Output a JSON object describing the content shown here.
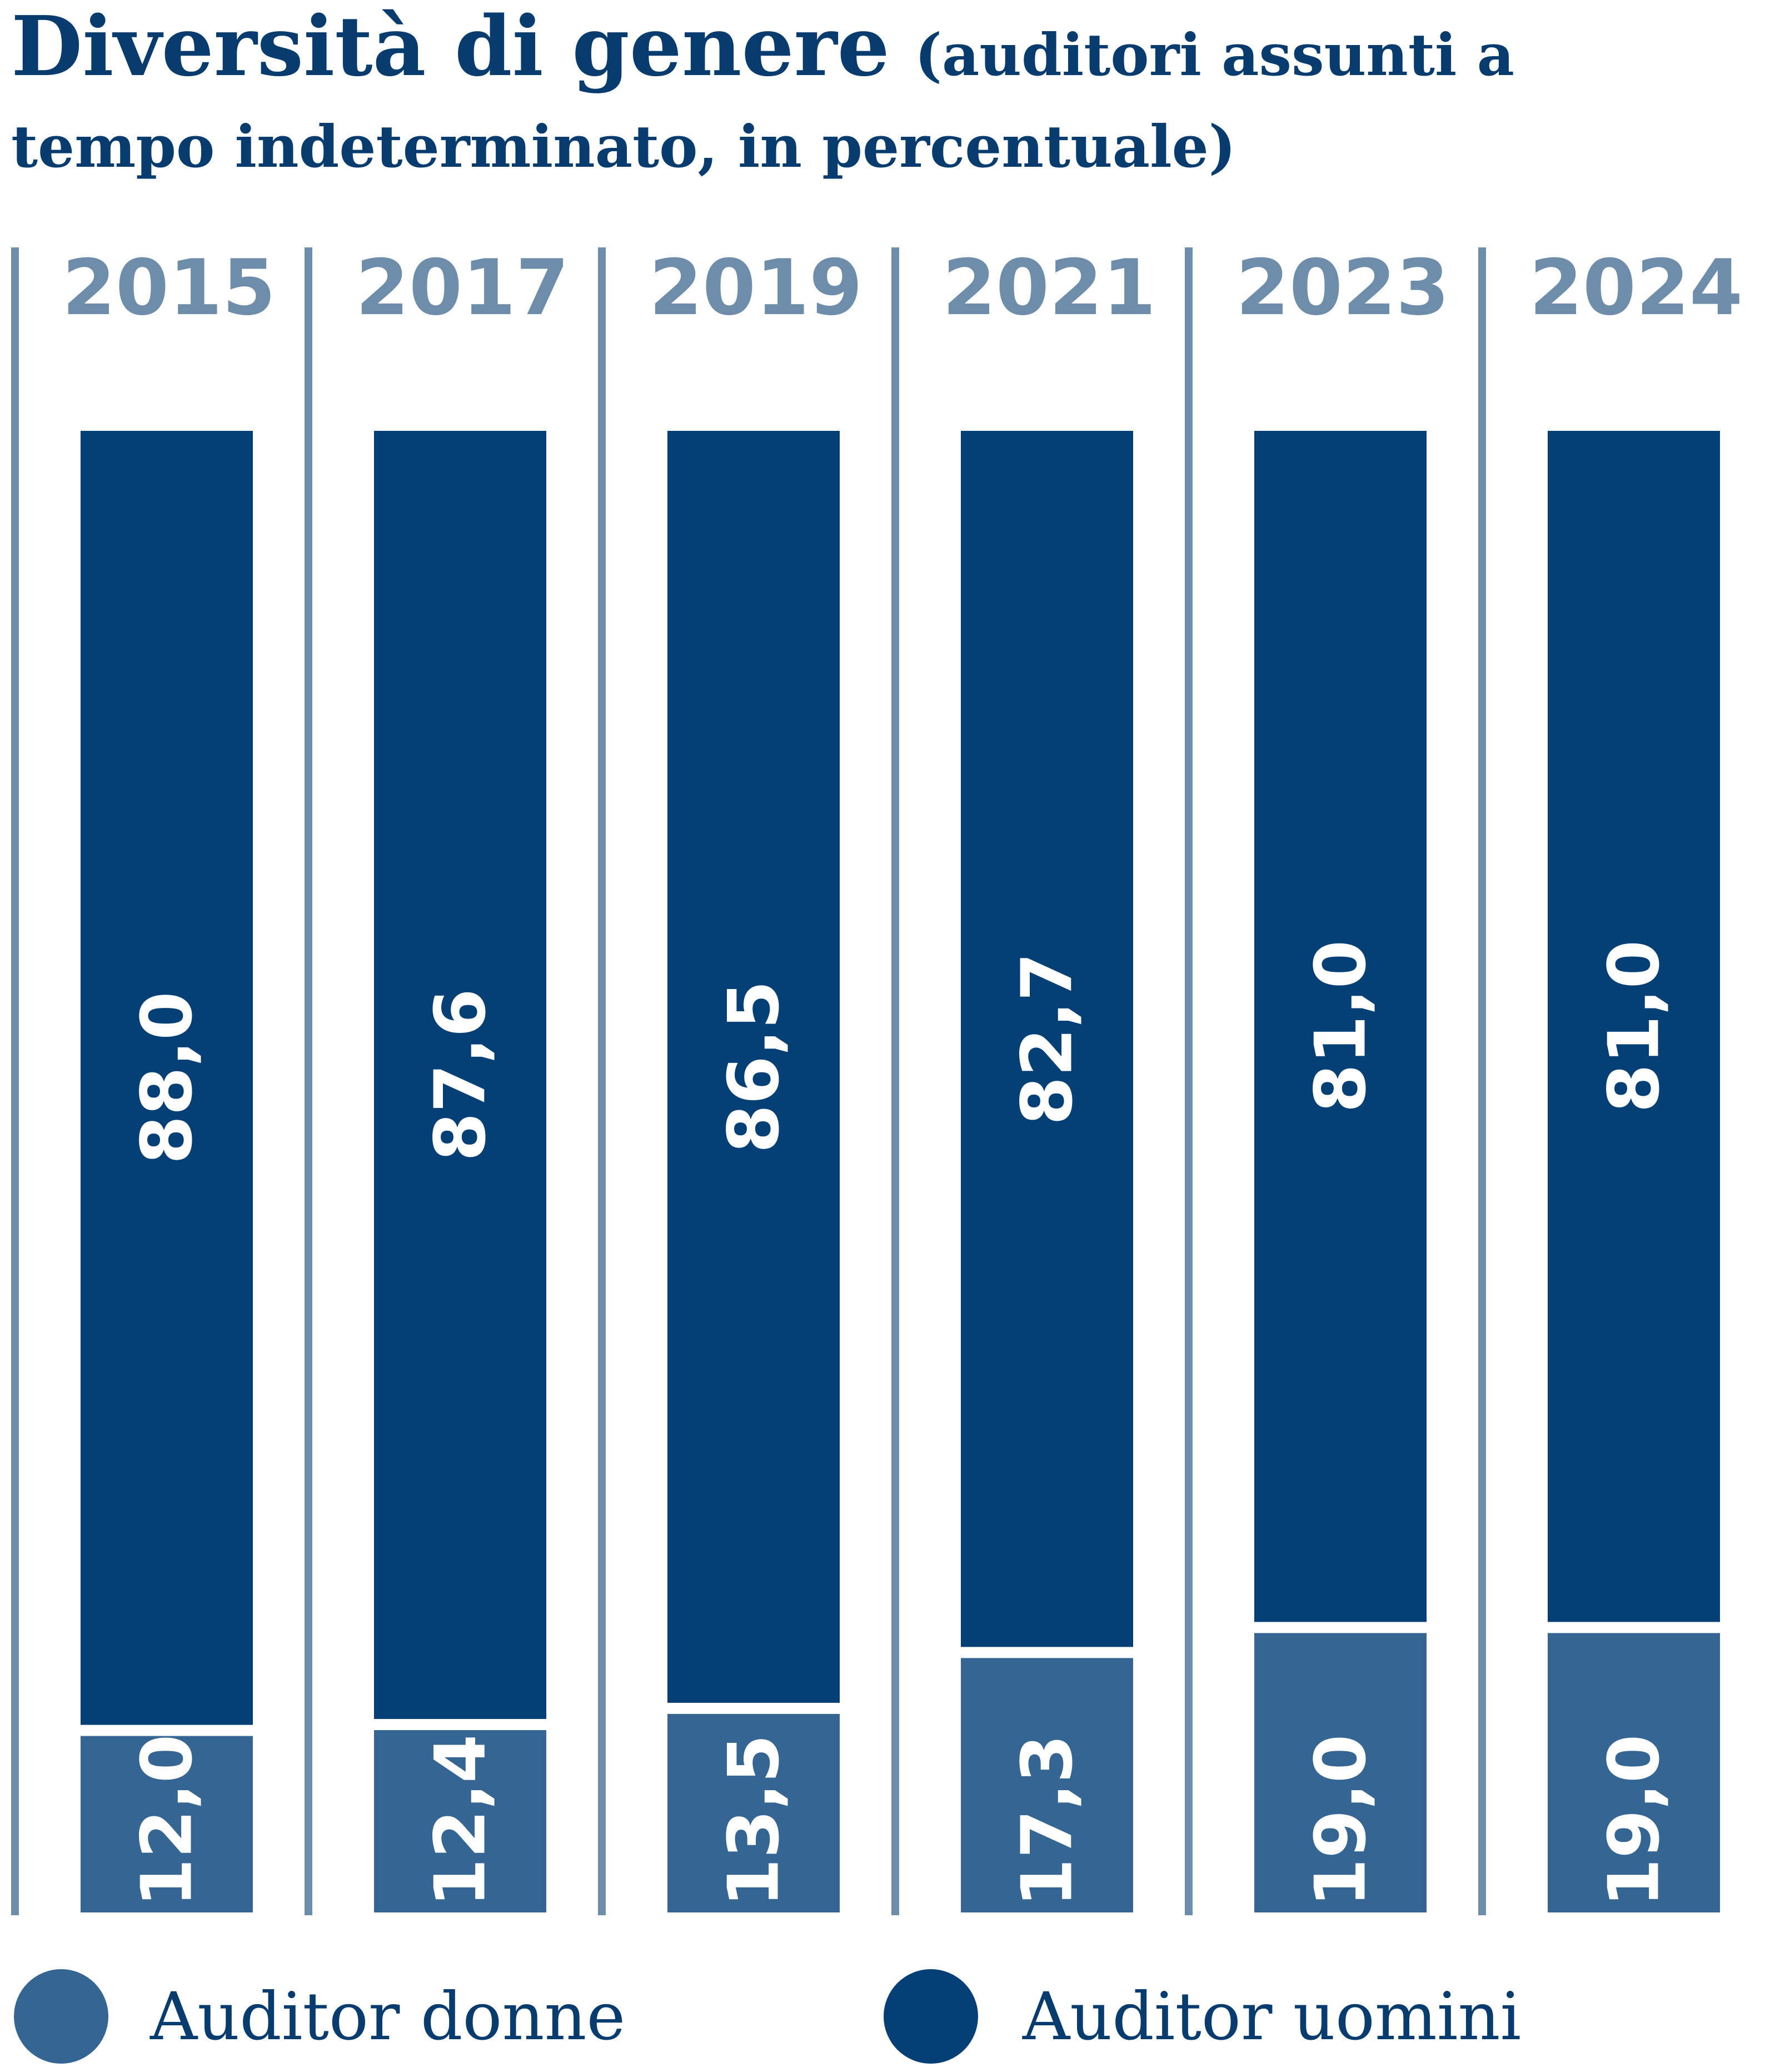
{
  "title": "Diversità di genere",
  "subtitle_line1": "(auditori assunti a",
  "subtitle_line2": "tempo indeterminato, in percentuale)",
  "colors": {
    "women": "#346593",
    "men": "#043F76",
    "divider": "#6E8DAB",
    "text": "#083C6E",
    "year": "#6E8DAB"
  },
  "chart_data": {
    "type": "bar",
    "stacked": true,
    "orientation": "vertical",
    "categories": [
      "2015",
      "2017",
      "2019",
      "2021",
      "2023",
      "2024"
    ],
    "series": [
      {
        "name": "Auditor donne",
        "values": [
          12.0,
          12.4,
          13.5,
          17.3,
          19.0,
          19.0
        ],
        "labels": [
          "12,0",
          "12,4",
          "13,5",
          "17,3",
          "19,0",
          "19,0"
        ]
      },
      {
        "name": "Auditor uomini",
        "values": [
          88.0,
          87.6,
          86.5,
          82.7,
          81.0,
          81.0
        ],
        "labels": [
          "88,0",
          "87,6",
          "86,5",
          "82,7",
          "81,0",
          "81,0"
        ]
      }
    ],
    "ylim": [
      0,
      100
    ],
    "xlabel": "",
    "ylabel": "",
    "grid": false,
    "legend_position": "bottom",
    "value_labels_rotated": true
  },
  "legend": [
    {
      "label": "Auditor donne",
      "color": "#346593"
    },
    {
      "label": "Auditor uomini",
      "color": "#043F76"
    }
  ]
}
